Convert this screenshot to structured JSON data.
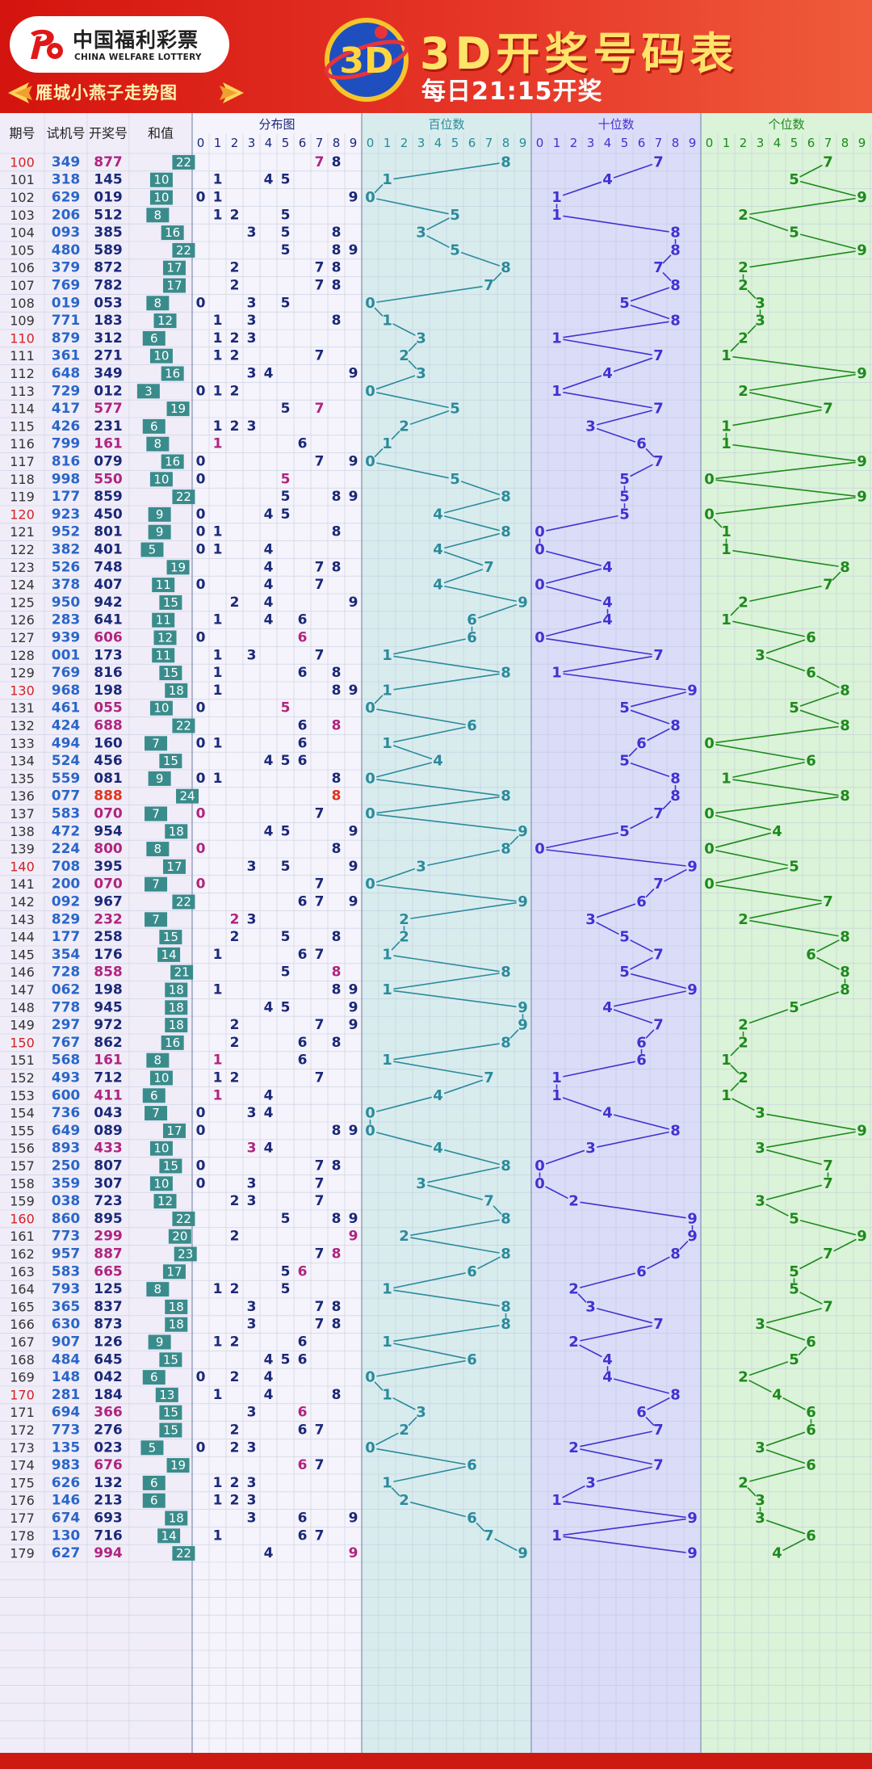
{
  "header": {
    "logo_cn": "中国福利彩票",
    "logo_en": "CHINA WELFARE LOTTERY",
    "ribbon": "雁城小燕子走势图",
    "emblem_text": "3D",
    "title": "3D开奖号码表",
    "subtitle": "每日21:15开奖"
  },
  "columns": {
    "issue": "期号",
    "trial": "试机号",
    "draw": "开奖号",
    "sum": "和值",
    "distribution": "分布图",
    "hundreds": "百位数",
    "tens": "十位数",
    "units": "个位数",
    "digits": [
      "0",
      "1",
      "2",
      "3",
      "4",
      "5",
      "6",
      "7",
      "8",
      "9"
    ]
  },
  "colors": {
    "issue": "#333333",
    "issue_highlight": "#d62020",
    "trial": "#2a66c8",
    "draw": "#1a2878",
    "draw_pair": "#b0247f",
    "draw_triple": "#e0341c",
    "sum_badge": "#3a8c8c",
    "dist_digit": "#1a2878",
    "dist_pair": "#b0247f",
    "hundreds_bg": "#d8ecee",
    "hundreds_line": "#2b8a9b",
    "tens_bg": "#dbdcf8",
    "tens_line": "#4032d0",
    "units_bg": "#dbf3d8",
    "units_line": "#1d8a1d",
    "left_bg": "#f0edf9",
    "dist_bg": "#f5f3fb"
  },
  "chart_data": {
    "type": "table",
    "title": "3D开奖号码表",
    "highlighted_issues": [
      "100",
      "110",
      "120",
      "130",
      "140",
      "150",
      "160",
      "170"
    ],
    "rows": [
      [
        "100",
        "349",
        "877",
        "22"
      ],
      [
        "101",
        "318",
        "145",
        "10"
      ],
      [
        "102",
        "629",
        "019",
        "10"
      ],
      [
        "103",
        "206",
        "512",
        "8"
      ],
      [
        "104",
        "093",
        "385",
        "16"
      ],
      [
        "105",
        "480",
        "589",
        "22"
      ],
      [
        "106",
        "379",
        "872",
        "17"
      ],
      [
        "107",
        "769",
        "782",
        "17"
      ],
      [
        "108",
        "019",
        "053",
        "8"
      ],
      [
        "109",
        "771",
        "183",
        "12"
      ],
      [
        "110",
        "879",
        "312",
        "6"
      ],
      [
        "111",
        "361",
        "271",
        "10"
      ],
      [
        "112",
        "648",
        "349",
        "16"
      ],
      [
        "113",
        "729",
        "012",
        "3"
      ],
      [
        "114",
        "417",
        "577",
        "19"
      ],
      [
        "115",
        "426",
        "231",
        "6"
      ],
      [
        "116",
        "799",
        "161",
        "8"
      ],
      [
        "117",
        "816",
        "079",
        "16"
      ],
      [
        "118",
        "998",
        "550",
        "10"
      ],
      [
        "119",
        "177",
        "859",
        "22"
      ],
      [
        "120",
        "923",
        "450",
        "9"
      ],
      [
        "121",
        "952",
        "801",
        "9"
      ],
      [
        "122",
        "382",
        "401",
        "5"
      ],
      [
        "123",
        "526",
        "748",
        "19"
      ],
      [
        "124",
        "378",
        "407",
        "11"
      ],
      [
        "125",
        "950",
        "942",
        "15"
      ],
      [
        "126",
        "283",
        "641",
        "11"
      ],
      [
        "127",
        "939",
        "606",
        "12"
      ],
      [
        "128",
        "001",
        "173",
        "11"
      ],
      [
        "129",
        "769",
        "816",
        "15"
      ],
      [
        "130",
        "968",
        "198",
        "18"
      ],
      [
        "131",
        "461",
        "055",
        "10"
      ],
      [
        "132",
        "424",
        "688",
        "22"
      ],
      [
        "133",
        "494",
        "160",
        "7"
      ],
      [
        "134",
        "524",
        "456",
        "15"
      ],
      [
        "135",
        "559",
        "081",
        "9"
      ],
      [
        "136",
        "077",
        "888",
        "24"
      ],
      [
        "137",
        "583",
        "070",
        "7"
      ],
      [
        "138",
        "472",
        "954",
        "18"
      ],
      [
        "139",
        "224",
        "800",
        "8"
      ],
      [
        "140",
        "708",
        "395",
        "17"
      ],
      [
        "141",
        "200",
        "070",
        "7"
      ],
      [
        "142",
        "092",
        "967",
        "22"
      ],
      [
        "143",
        "829",
        "232",
        "7"
      ],
      [
        "144",
        "177",
        "258",
        "15"
      ],
      [
        "145",
        "354",
        "176",
        "14"
      ],
      [
        "146",
        "728",
        "858",
        "21"
      ],
      [
        "147",
        "062",
        "198",
        "18"
      ],
      [
        "148",
        "778",
        "945",
        "18"
      ],
      [
        "149",
        "297",
        "972",
        "18"
      ],
      [
        "150",
        "767",
        "862",
        "16"
      ],
      [
        "151",
        "568",
        "161",
        "8"
      ],
      [
        "152",
        "493",
        "712",
        "10"
      ],
      [
        "153",
        "600",
        "411",
        "6"
      ],
      [
        "154",
        "736",
        "043",
        "7"
      ],
      [
        "155",
        "649",
        "089",
        "17"
      ],
      [
        "156",
        "893",
        "433",
        "10"
      ],
      [
        "157",
        "250",
        "807",
        "15"
      ],
      [
        "158",
        "359",
        "307",
        "10"
      ],
      [
        "159",
        "038",
        "723",
        "12"
      ],
      [
        "160",
        "860",
        "895",
        "22"
      ],
      [
        "161",
        "773",
        "299",
        "20"
      ],
      [
        "162",
        "957",
        "887",
        "23"
      ],
      [
        "163",
        "583",
        "665",
        "17"
      ],
      [
        "164",
        "793",
        "125",
        "8"
      ],
      [
        "165",
        "365",
        "837",
        "18"
      ],
      [
        "166",
        "630",
        "873",
        "18"
      ],
      [
        "167",
        "907",
        "126",
        "9"
      ],
      [
        "168",
        "484",
        "645",
        "15"
      ],
      [
        "169",
        "148",
        "042",
        "6"
      ],
      [
        "170",
        "281",
        "184",
        "13"
      ],
      [
        "171",
        "694",
        "366",
        "15"
      ],
      [
        "172",
        "773",
        "276",
        "15"
      ],
      [
        "173",
        "135",
        "023",
        "5"
      ],
      [
        "174",
        "983",
        "676",
        "19"
      ],
      [
        "175",
        "626",
        "132",
        "6"
      ],
      [
        "176",
        "146",
        "213",
        "6"
      ],
      [
        "177",
        "674",
        "693",
        "18"
      ],
      [
        "178",
        "130",
        "716",
        "14"
      ],
      [
        "179",
        "627",
        "994",
        "22"
      ]
    ]
  }
}
